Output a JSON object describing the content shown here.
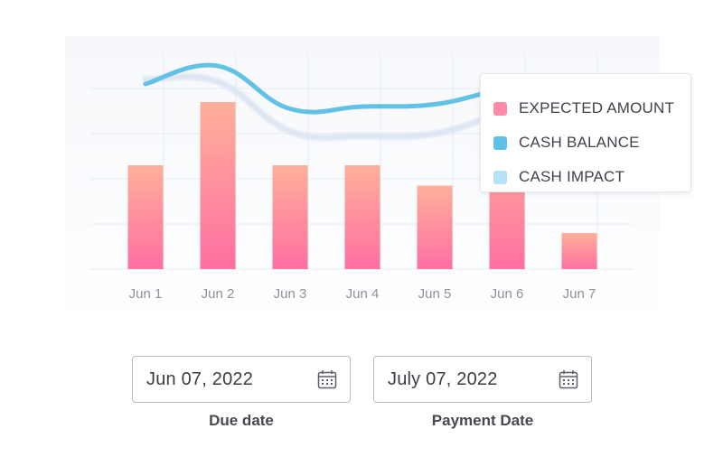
{
  "chart_data": {
    "type": "bar",
    "categories": [
      "Jun 1",
      "Jun 2",
      "Jun 3",
      "Jun 4",
      "Jun 5",
      "Jun 6",
      "Jun 7"
    ],
    "series": [
      {
        "name": "EXPECTED AMOUNT",
        "type": "bar",
        "values": [
          46,
          74,
          46,
          46,
          37,
          58,
          16
        ]
      },
      {
        "name": "CASH BALANCE",
        "type": "line",
        "values": [
          82,
          90,
          71,
          72,
          73,
          80,
          83
        ]
      },
      {
        "name": "CASH IMPACT",
        "type": "line",
        "values": [
          84,
          83,
          61,
          59,
          60,
          69,
          72
        ]
      }
    ],
    "ylim": [
      0,
      100
    ],
    "grid": true,
    "legend_position": "top-right"
  },
  "legend": {
    "items": [
      {
        "label": "EXPECTED AMOUNT",
        "color": "#ff8aa8"
      },
      {
        "label": "CASH BALANCE",
        "color": "#5fc1e6"
      },
      {
        "label": "CASH IMPACT",
        "color": "#b6e3f7"
      }
    ]
  },
  "colors": {
    "bar_top": "#ffb09a",
    "bar_bottom": "#ff6fa1",
    "cash_balance_line": "#62c2e6",
    "cash_impact_line": "#dde6f2",
    "grid": "#e7ebf0"
  },
  "fields": {
    "due": {
      "value": "Jun 07, 2022",
      "label": "Due date",
      "icon": "calendar-icon"
    },
    "payment": {
      "value": "July 07, 2022",
      "label": "Payment Date",
      "icon": "calendar-icon"
    }
  }
}
